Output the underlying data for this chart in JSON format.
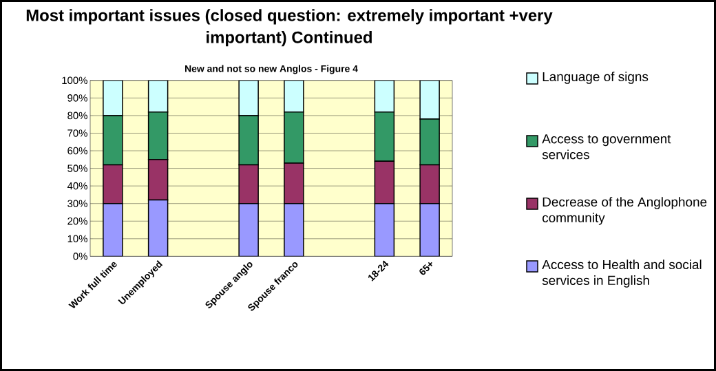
{
  "chart_data": {
    "type": "bar",
    "stacked": true,
    "title": "Most important issues (closed question: extremely important +very important)  Continued",
    "subtitle": "New and not so new Anglos - Figure 4",
    "categories": [
      "Work full time",
      "Unemployed",
      null,
      "Spouse anglo",
      "Spouse franco",
      null,
      "18-24",
      "65+"
    ],
    "series": [
      {
        "name": "Access to Health and social services in English",
        "color": "#9999ff",
        "values": [
          30,
          32,
          null,
          30,
          30,
          null,
          30,
          30
        ]
      },
      {
        "name": "Decrease of the Anglophone community",
        "color": "#993366",
        "values": [
          22,
          23,
          null,
          22,
          23,
          null,
          24,
          22
        ]
      },
      {
        "name": "Access to government services",
        "color": "#339966",
        "values": [
          28,
          27,
          null,
          28,
          29,
          null,
          28,
          26
        ]
      },
      {
        "name": "Language of signs",
        "color": "#ccffff",
        "values": [
          20,
          18,
          null,
          20,
          18,
          null,
          18,
          22
        ]
      }
    ],
    "ylim": [
      0,
      100
    ],
    "yticks": [
      {
        "value": 0,
        "label": "0%"
      },
      {
        "value": 10,
        "label": "10%"
      },
      {
        "value": 20,
        "label": "20%"
      },
      {
        "value": 30,
        "label": "30%"
      },
      {
        "value": 40,
        "label": "40%"
      },
      {
        "value": 50,
        "label": "50%"
      },
      {
        "value": 60,
        "label": "60%"
      },
      {
        "value": 70,
        "label": "70%"
      },
      {
        "value": 80,
        "label": "80%"
      },
      {
        "value": 90,
        "label": "90%"
      },
      {
        "value": 100,
        "label": "100%"
      }
    ],
    "grid": "y",
    "legend": "right"
  }
}
